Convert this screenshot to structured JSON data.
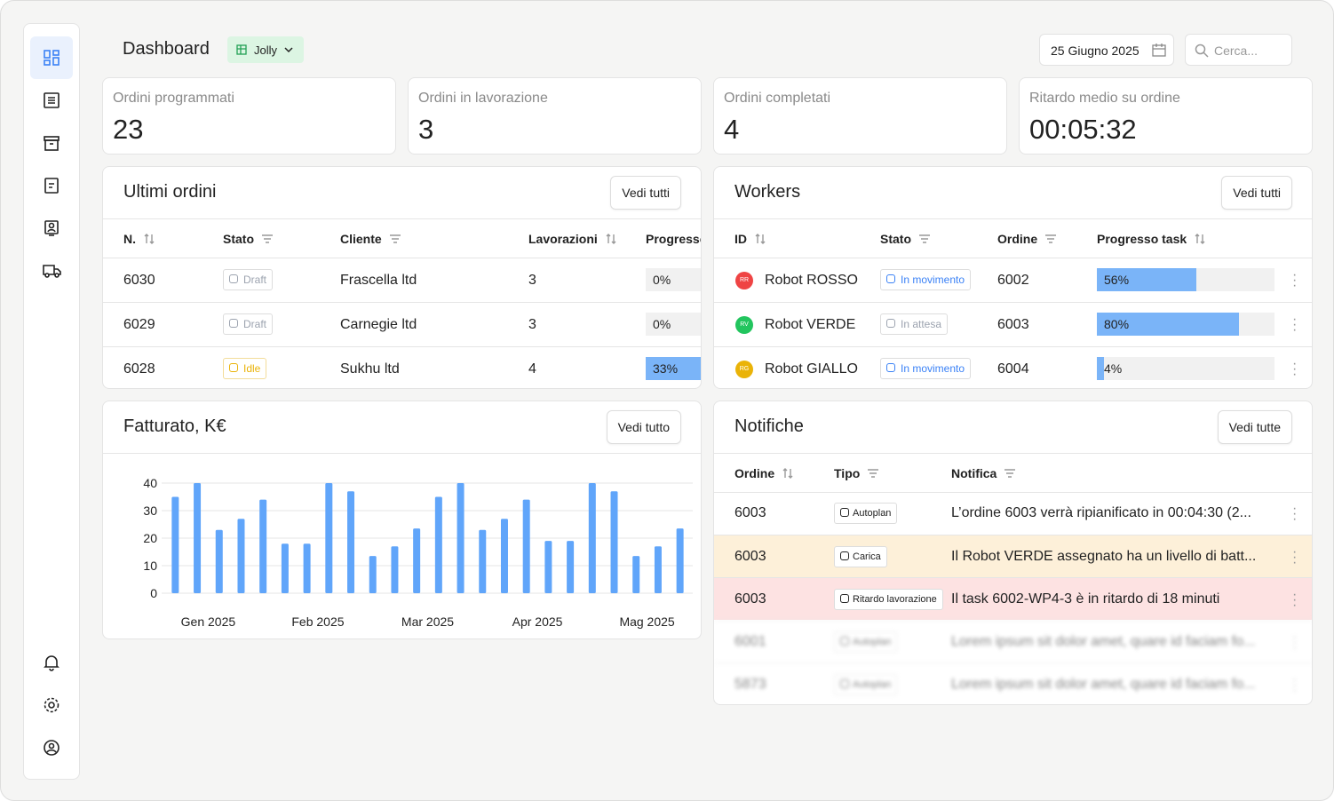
{
  "header": {
    "title": "Dashboard",
    "tag": "Jolly",
    "date": "25 Giugno 2025",
    "search": "Cerca..."
  },
  "kpis": [
    {
      "label": "Ordini programmati",
      "value": "23"
    },
    {
      "label": "Ordini in lavorazione",
      "value": "3"
    },
    {
      "label": "Ordini completati",
      "value": "4"
    },
    {
      "label": "Ritardo medio su ordine",
      "value": "00:05:32"
    }
  ],
  "orders": {
    "title": "Ultimi ordini",
    "button": "Vedi tutti",
    "columns": [
      {
        "label": "N.",
        "icon": "sort"
      },
      {
        "label": "Stato",
        "icon": "filter"
      },
      {
        "label": "Cliente",
        "icon": "filter"
      },
      {
        "label": "Lavorazioni",
        "icon": "sort"
      },
      {
        "label": "Progresso",
        "icon": "sort"
      }
    ],
    "rows": [
      {
        "id": "6030",
        "status": "Draft",
        "status_color": "#9ca3af",
        "client": "Frascella ltd",
        "works": "3",
        "progress": 0,
        "progress_label": "0%"
      },
      {
        "id": "6029",
        "status": "Draft",
        "status_color": "#9ca3af",
        "client": "Carnegie ltd",
        "works": "3",
        "progress": 0,
        "progress_label": "0%"
      },
      {
        "id": "6028",
        "status": "Idle",
        "status_color": "#eab308",
        "client": "Sukhu ltd",
        "works": "4",
        "progress": 33,
        "progress_label": "33%"
      }
    ]
  },
  "workers": {
    "title": "Workers",
    "button": "Vedi tutti",
    "columns": [
      {
        "label": "ID",
        "icon": "sort"
      },
      {
        "label": "Stato",
        "icon": "filter"
      },
      {
        "label": "Ordine",
        "icon": "filter"
      },
      {
        "label": "Progresso task",
        "icon": "sort"
      }
    ],
    "rows": [
      {
        "initials": "RR",
        "avatar_color": "#ef4444",
        "name": "Robot ROSSO",
        "status": "In movimento",
        "status_color": "#3b82f6",
        "order": "6002",
        "progress": 56,
        "progress_label": "56%"
      },
      {
        "initials": "RV",
        "avatar_color": "#22c55e",
        "name": "Robot VERDE",
        "status": "In attesa",
        "status_color": "#9ca3af",
        "order": "6003",
        "progress": 80,
        "progress_label": "80%"
      },
      {
        "initials": "RG",
        "avatar_color": "#eab308",
        "name": "Robot GIALLO",
        "status": "In movimento",
        "status_color": "#3b82f6",
        "order": "6004",
        "progress": 4,
        "progress_label": "4%"
      }
    ]
  },
  "chart_data": {
    "type": "bar",
    "title": "Fatturato, K€",
    "button": "Vedi tutto",
    "color": "#60a5fa",
    "categories": [
      null,
      "Gen 2025",
      null,
      null,
      null,
      null,
      "Feb 2025",
      null,
      null,
      null,
      null,
      "Mar 2025",
      null,
      null,
      null,
      null,
      "Apr 2025",
      null,
      null,
      null,
      null,
      "Mag 2025",
      null,
      null
    ],
    "values": [
      35,
      40,
      23,
      27,
      34,
      18,
      18,
      40,
      37,
      13.5,
      17,
      23.5,
      35,
      40,
      23,
      27,
      34,
      19,
      19,
      40,
      37,
      13.5,
      17,
      23.5
    ],
    "ylim": [
      0,
      40
    ],
    "yticks": [
      0,
      10,
      20,
      30,
      40
    ],
    "grid": true
  },
  "notifications": {
    "title": "Notifiche",
    "button": "Vedi tutte",
    "columns": [
      {
        "label": "Ordine",
        "icon": "sort"
      },
      {
        "label": "Tipo",
        "icon": "filter"
      },
      {
        "label": "Notifica",
        "icon": "filter"
      }
    ],
    "rows": [
      {
        "order": "6003",
        "type": "Autoplan",
        "text": "L’ordine 6003 verrà ripianificato in 00:04:30 (2...",
        "highlight": "none"
      },
      {
        "order": "6003",
        "type": "Carica",
        "text": "Il Robot VERDE assegnato ha un livello di batt...",
        "highlight": "#fdf0d9"
      },
      {
        "order": "6003",
        "type": "Ritardo lavorazione",
        "text": "Il task 6002-WP4-3 è in ritardo di 18 minuti",
        "highlight": "#fde2e2"
      },
      {
        "order": "6001",
        "type": "Autoplan",
        "text": "Lorem ipsum sit dolor amet, quare id faciam fo...",
        "highlight": "blur"
      },
      {
        "order": "5873",
        "type": "Autoplan",
        "text": "Lorem ipsum sit dolor amet, quare id faciam fo...",
        "highlight": "blur"
      }
    ]
  }
}
